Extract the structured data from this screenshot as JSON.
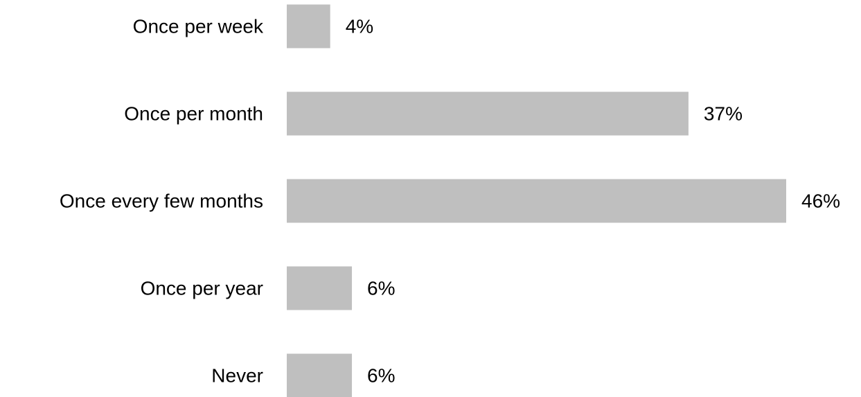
{
  "chart_data": {
    "type": "bar",
    "orientation": "horizontal",
    "categories": [
      "Once per week",
      "Once per month",
      "Once every few months",
      "Once per year",
      "Never"
    ],
    "values": [
      4,
      37,
      46,
      6,
      6
    ],
    "value_labels": [
      "4%",
      "37%",
      "46%",
      "6%",
      "6%"
    ],
    "unit": "%",
    "xlim": [
      0,
      46
    ],
    "grid": false,
    "legend": "none",
    "bar_color": "#bfbfbf",
    "text_color": "#000000"
  }
}
